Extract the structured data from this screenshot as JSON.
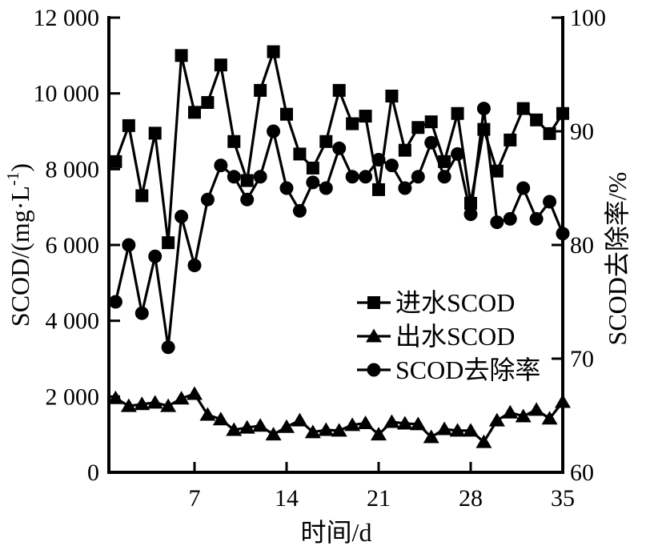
{
  "figure": {
    "background_color": "#ffffff",
    "foreground_color": "#000000",
    "left_axis": {
      "label": "SCOD/(mg·L⁻¹)",
      "label_main": "SCOD/(mg·L",
      "label_sup": "-1",
      "label_close": ")",
      "tick_values": [
        0,
        2000,
        4000,
        6000,
        8000,
        10000,
        12000
      ],
      "tick_labels": [
        "0",
        "2 000",
        "4 000",
        "6 000",
        "8 000",
        "10 000",
        "12 000"
      ],
      "min": 0,
      "max": 12000
    },
    "right_axis": {
      "label": "SCOD去除率/%",
      "tick_values": [
        60,
        70,
        80,
        90,
        100
      ],
      "tick_labels": [
        "60",
        "70",
        "80",
        "90",
        "100"
      ],
      "min": 60,
      "max": 100
    },
    "x_axis": {
      "label": "时间/d",
      "tick_values": [
        7,
        14,
        21,
        28,
        35
      ],
      "tick_labels": [
        "7",
        "14",
        "21",
        "28",
        "35"
      ],
      "min": 0,
      "max": 35
    }
  },
  "chart_data": {
    "type": "line",
    "title": "",
    "xlabel": "时间/d",
    "ylabel_left": "SCOD/(mg·L⁻¹)",
    "ylabel_right": "SCOD去除率/%",
    "xlim": [
      0,
      35
    ],
    "ylim_left": [
      0,
      12000
    ],
    "ylim_right": [
      60,
      100
    ],
    "grid": false,
    "legend_position": "inside center-right",
    "x": [
      1,
      2,
      3,
      4,
      5,
      6,
      7,
      8,
      9,
      10,
      11,
      12,
      13,
      14,
      15,
      16,
      17,
      18,
      19,
      20,
      21,
      22,
      23,
      24,
      25,
      26,
      27,
      28,
      29,
      30,
      31,
      32,
      33,
      34,
      35
    ],
    "series": [
      {
        "name": "进水SCOD",
        "marker": "square",
        "axis": "left",
        "values": [
          8200,
          9150,
          7300,
          8950,
          6060,
          11000,
          9500,
          9760,
          10750,
          8730,
          7700,
          10080,
          11100,
          9450,
          8400,
          8030,
          8730,
          10080,
          9200,
          9400,
          7460,
          9930,
          8500,
          9100,
          9250,
          8200,
          9470,
          7100,
          9050,
          7950,
          8770,
          9600,
          9300,
          8940,
          9470
        ]
      },
      {
        "name": "出水SCOD",
        "marker": "triangle",
        "axis": "left",
        "values": [
          1960,
          1750,
          1800,
          1840,
          1750,
          1950,
          2070,
          1520,
          1400,
          1120,
          1180,
          1230,
          1000,
          1200,
          1370,
          1060,
          1120,
          1100,
          1250,
          1300,
          1000,
          1330,
          1290,
          1270,
          930,
          1140,
          1100,
          1100,
          800,
          1370,
          1580,
          1480,
          1650,
          1420,
          1860
        ]
      },
      {
        "name": "SCOD去除率",
        "marker": "circle",
        "axis": "right",
        "values": [
          75,
          80,
          74,
          79,
          71,
          82.5,
          78.2,
          84,
          87,
          86,
          84,
          86,
          90,
          85,
          83,
          85.5,
          85,
          88.5,
          86,
          86,
          87.5,
          87,
          85,
          86,
          89,
          86,
          88,
          82.7,
          92,
          82,
          82.3,
          85,
          82.3,
          83.8,
          81
        ]
      }
    ]
  }
}
